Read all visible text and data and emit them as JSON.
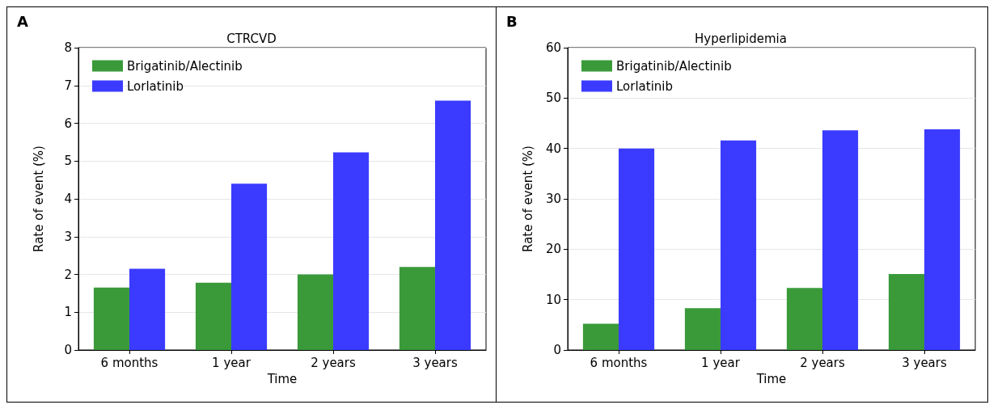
{
  "chart_data": [
    {
      "type": "bar",
      "title": "CTRCVD",
      "xlabel": "Time",
      "ylabel": "Rate of event (%)",
      "annotations": [
        "A"
      ],
      "categories": [
        "6 months",
        "1 year",
        "2 years",
        "3 years"
      ],
      "series": [
        {
          "name": "Brigatinib/Alectinib",
          "color": "#3a9a3a",
          "values": [
            1.65,
            1.78,
            2.0,
            2.2
          ]
        },
        {
          "name": "Lorlatinib",
          "color": "#3b3bff",
          "values": [
            2.15,
            4.4,
            5.23,
            6.6
          ]
        }
      ],
      "ylim": [
        0,
        8
      ],
      "yticks": [
        0,
        1,
        2,
        3,
        4,
        5,
        6,
        7,
        8
      ],
      "grid": "y",
      "legend": "top left"
    },
    {
      "type": "bar",
      "title": "Hyperlipidemia",
      "xlabel": "Time",
      "ylabel": "Rate of event (%)",
      "annotations": [
        "B"
      ],
      "categories": [
        "6 months",
        "1 year",
        "2 years",
        "3 years"
      ],
      "series": [
        {
          "name": "Brigatinib/Alectinib",
          "color": "#3a9a3a",
          "values": [
            5.2,
            8.3,
            12.3,
            15.1
          ]
        },
        {
          "name": "Lorlatinib",
          "color": "#3b3bff",
          "values": [
            40.0,
            41.6,
            43.6,
            43.8
          ]
        }
      ],
      "ylim": [
        0,
        60
      ],
      "yticks": [
        0,
        10,
        20,
        30,
        40,
        50,
        60
      ],
      "grid": "y",
      "legend": "top left"
    }
  ]
}
